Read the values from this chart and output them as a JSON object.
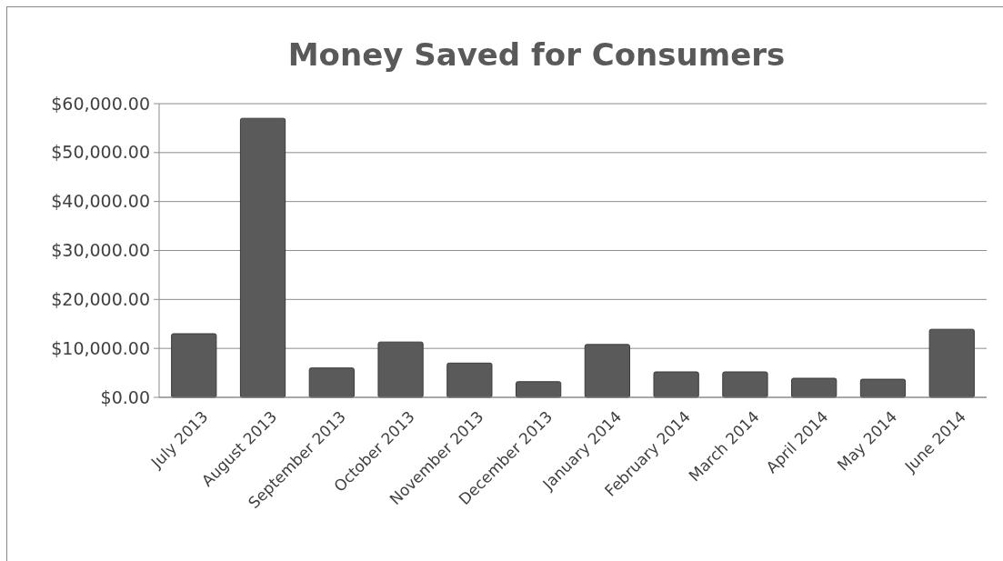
{
  "chart_data": {
    "type": "bar",
    "title": "Money Saved for Consumers",
    "categories": [
      "July 2013",
      "August 2013",
      "September 2013",
      "October 2013",
      "November 2013",
      "December 2013",
      "January 2014",
      "February 2014",
      "March 2014",
      "April 2014",
      "May 2014",
      "June 2014"
    ],
    "values": [
      13000,
      57000,
      6000,
      11300,
      7000,
      3200,
      10800,
      5200,
      5200,
      3900,
      3700,
      13900
    ],
    "color": "#5a5a5a",
    "ylim": [
      0,
      60000
    ],
    "yticks": [
      {
        "value": 0,
        "label": "$0.00"
      },
      {
        "value": 10000,
        "label": "$10,000.00"
      },
      {
        "value": 20000,
        "label": "$20,000.00"
      },
      {
        "value": 30000,
        "label": "$30,000.00"
      },
      {
        "value": 40000,
        "label": "$40,000.00"
      },
      {
        "value": 50000,
        "label": "$50,000.00"
      },
      {
        "value": 60000,
        "label": "$60,000.00"
      }
    ],
    "grid": "y"
  }
}
